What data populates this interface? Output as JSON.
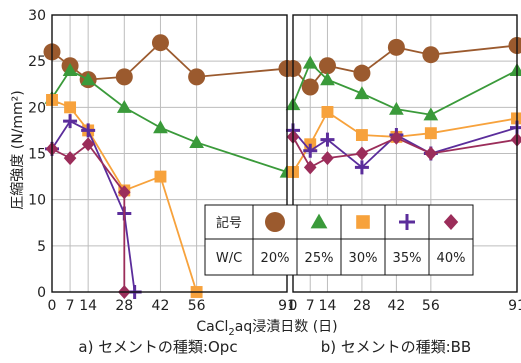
{
  "chart_data": [
    {
      "type": "line",
      "caption": "a) セメントの種類:Opc",
      "x_ticks": [
        0,
        7,
        14,
        28,
        42,
        56,
        91
      ],
      "xlim": [
        0,
        91
      ],
      "ylim": [
        0,
        30
      ],
      "y_ticks": [
        0,
        5,
        10,
        15,
        20,
        25,
        30
      ],
      "grid": true,
      "series": [
        {
          "name": "20%",
          "marker": "circle",
          "color": "#9b5a2e",
          "points": [
            [
              0,
              26
            ],
            [
              7,
              24.5
            ],
            [
              14,
              23
            ],
            [
              28,
              23.3
            ],
            [
              42,
              27
            ],
            [
              56,
              23.3
            ],
            [
              91,
              24.2
            ]
          ]
        },
        {
          "name": "25%",
          "marker": "triangle",
          "color": "#3a9a3a",
          "points": [
            [
              0,
              21
            ],
            [
              7,
              24
            ],
            [
              14,
              23
            ],
            [
              28,
              20
            ],
            [
              42,
              17.8
            ],
            [
              56,
              16.2
            ],
            [
              91,
              13
            ]
          ]
        },
        {
          "name": "30%",
          "marker": "square",
          "color": "#f7a23c",
          "points": [
            [
              0,
              20.8
            ],
            [
              7,
              20
            ],
            [
              14,
              17.5
            ],
            [
              28,
              11
            ],
            [
              42,
              12.5
            ],
            [
              56,
              0
            ]
          ]
        },
        {
          "name": "35%",
          "marker": "plus",
          "color": "#5b2d9b",
          "points": [
            [
              0,
              15.5
            ],
            [
              7,
              18.5
            ],
            [
              14,
              17.5
            ],
            [
              28,
              8.5
            ],
            [
              32,
              0
            ]
          ]
        },
        {
          "name": "40%",
          "marker": "diamond",
          "color": "#9b2d5a",
          "points": [
            [
              0,
              15.5
            ],
            [
              7,
              14.5
            ],
            [
              14,
              16
            ],
            [
              28,
              10.8
            ],
            [
              28,
              0
            ]
          ]
        }
      ]
    },
    {
      "type": "line",
      "caption": "b) セメントの種類:BB",
      "x_ticks": [
        0,
        7,
        14,
        28,
        42,
        56,
        91
      ],
      "xlim": [
        0,
        91
      ],
      "ylim": [
        0,
        30
      ],
      "grid": true,
      "series": [
        {
          "name": "20%",
          "marker": "circle",
          "color": "#9b5a2e",
          "points": [
            [
              0,
              24.2
            ],
            [
              7,
              22.2
            ],
            [
              14,
              24.5
            ],
            [
              28,
              23.7
            ],
            [
              42,
              26.5
            ],
            [
              56,
              25.7
            ],
            [
              91,
              26.7
            ]
          ]
        },
        {
          "name": "25%",
          "marker": "triangle",
          "color": "#3a9a3a",
          "points": [
            [
              0,
              20.3
            ],
            [
              7,
              24.8
            ],
            [
              14,
              23
            ],
            [
              28,
              21.5
            ],
            [
              42,
              19.8
            ],
            [
              56,
              19.2
            ],
            [
              91,
              24
            ]
          ]
        },
        {
          "name": "30%",
          "marker": "square",
          "color": "#f7a23c",
          "points": [
            [
              0,
              13
            ],
            [
              7,
              16
            ],
            [
              14,
              19.5
            ],
            [
              28,
              17
            ],
            [
              42,
              16.8
            ],
            [
              56,
              17.2
            ],
            [
              91,
              18.8
            ]
          ]
        },
        {
          "name": "35%",
          "marker": "plus",
          "color": "#5b2d9b",
          "points": [
            [
              0,
              17.5
            ],
            [
              7,
              15.3
            ],
            [
              14,
              16.5
            ],
            [
              28,
              13.5
            ],
            [
              42,
              17
            ],
            [
              56,
              15
            ],
            [
              91,
              17.8
            ]
          ]
        },
        {
          "name": "40%",
          "marker": "diamond",
          "color": "#9b2d5a",
          "points": [
            [
              0,
              16.8
            ],
            [
              7,
              13.5
            ],
            [
              14,
              14.5
            ],
            [
              28,
              15
            ],
            [
              42,
              16.7
            ],
            [
              56,
              15
            ],
            [
              91,
              16.5
            ]
          ]
        }
      ]
    }
  ],
  "ylabel": "圧縮強度 (N/mm²)",
  "xlabel_prefix": "CaCl",
  "xlabel_sub": "2",
  "xlabel_suffix": "aq浸漬日数 (日)",
  "legend": {
    "row1_label": "記号",
    "row2_label": "W/C",
    "items": [
      {
        "label": "20%",
        "marker": "circle",
        "color": "#9b5a2e"
      },
      {
        "label": "25%",
        "marker": "triangle",
        "color": "#3a9a3a"
      },
      {
        "label": "30%",
        "marker": "square",
        "color": "#f7a23c"
      },
      {
        "label": "35%",
        "marker": "plus",
        "color": "#5b2d9b"
      },
      {
        "label": "40%",
        "marker": "diamond",
        "color": "#9b2d5a"
      }
    ]
  }
}
